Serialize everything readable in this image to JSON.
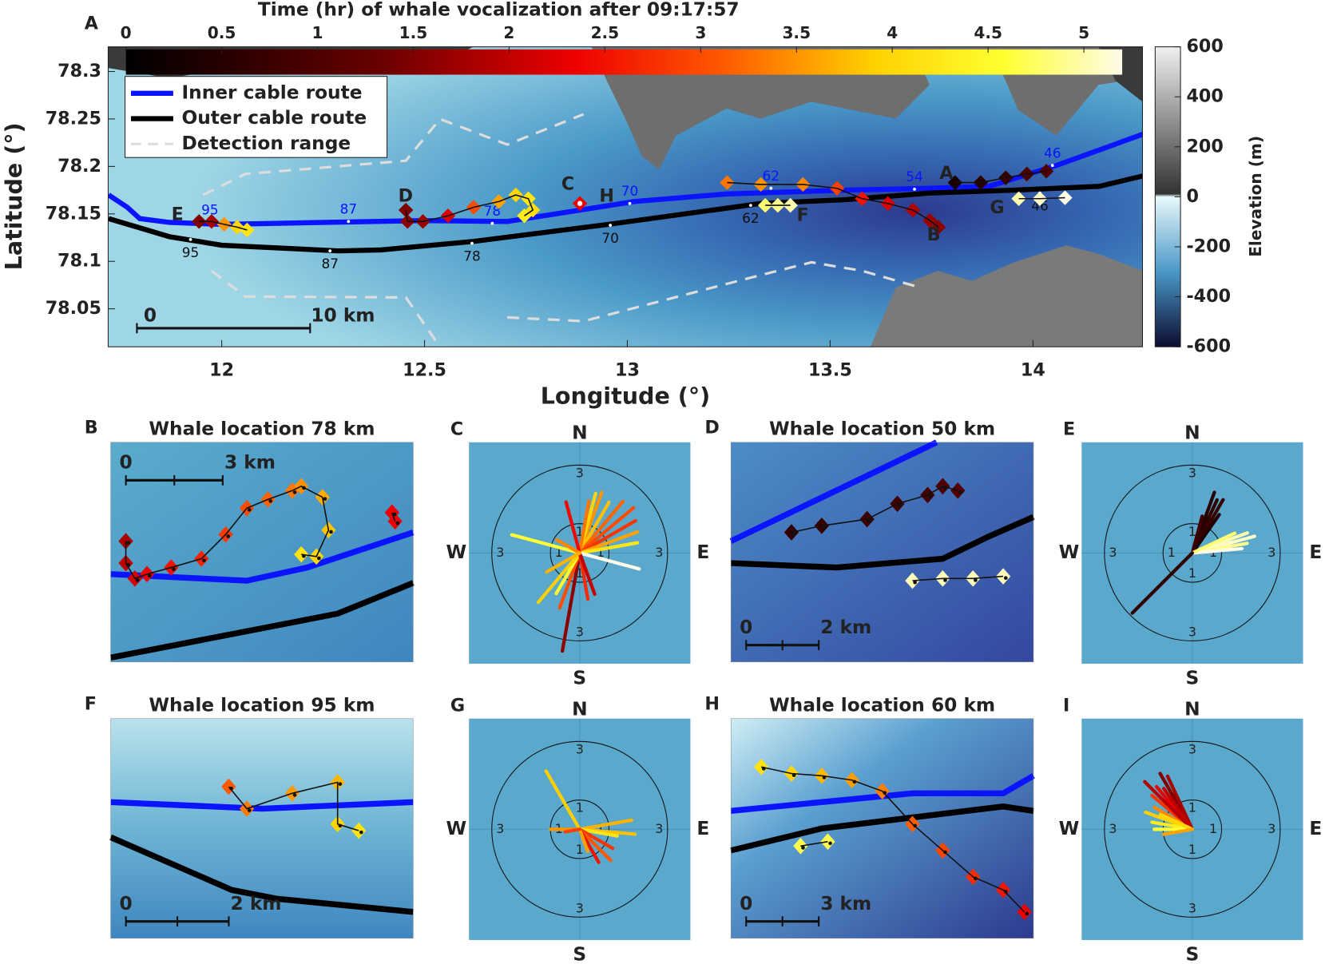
{
  "chart_data": [
    {
      "type": "map",
      "letter": "A",
      "xlabel": "Longitude (°)",
      "ylabel": "Latitude (°)",
      "xlim": [
        11.72,
        14.27
      ],
      "ylim": [
        78.01,
        78.326
      ],
      "xticks": [
        12,
        12.5,
        13,
        13.5,
        14
      ],
      "yticks": [
        78.05,
        78.1,
        78.15,
        78.2,
        78.25,
        78.3
      ],
      "legend": "upper left",
      "series": [
        {
          "name": "Inner cable route",
          "color": "#0a14ff",
          "style": "solid",
          "x": [
            11.721,
            11.767,
            11.798,
            11.871,
            12,
            12.496,
            12.704,
            13.017,
            13.246,
            13.538,
            13.746,
            13.892,
            14.058,
            14.271
          ],
          "y": [
            78.17,
            78.157,
            78.145,
            78.141,
            78.139,
            78.143,
            78.142,
            78.163,
            78.171,
            78.175,
            78.177,
            78.179,
            78.201,
            78.234
          ]
        },
        {
          "name": "Outer cable route",
          "color": "#000000",
          "style": "solid",
          "x": [
            11.721,
            11.871,
            12,
            12.288,
            12.392,
            12.621,
            12.954,
            13.329,
            13.538,
            13.746,
            13.954,
            14.163,
            14.271
          ],
          "y": [
            78.145,
            78.126,
            78.117,
            78.111,
            78.112,
            78.121,
            78.139,
            78.161,
            78.165,
            78.172,
            78.175,
            78.179,
            78.19
          ]
        },
        {
          "name": "Detection range",
          "color": "#dddddd",
          "style": "dashed",
          "x": [
            11.954,
            12.058,
            12.454,
            12.538,
            12.704,
            12.892,
            null,
            11.975,
            12.058,
            12.454,
            12.538,
            null,
            12.704,
            12.892,
            13.288,
            13.454,
            13.579,
            13.725
          ],
          "y": [
            78.17,
            78.192,
            78.206,
            78.25,
            78.223,
            78.255,
            null,
            78.09,
            78.063,
            78.062,
            78.01,
            null,
            78.041,
            78.037,
            78.081,
            78.099,
            78.09,
            78.072
          ]
        }
      ],
      "km_inner": {
        "labels": [
          95,
          87,
          78,
          70,
          62,
          54,
          46
        ],
        "lon": [
          11.971,
          12.3125,
          12.667,
          13.006,
          13.354,
          13.708,
          14.048
        ],
        "lat": [
          78.141,
          78.142,
          78.14,
          78.161,
          78.177,
          78.176,
          78.201
        ]
      },
      "km_outer": {
        "labels": [
          95,
          87,
          78,
          70,
          62,
          46
        ],
        "lon": [
          11.923,
          12.267,
          12.617,
          12.958,
          13.304,
          14.017
        ],
        "lat": [
          78.123,
          78.111,
          78.119,
          78.138,
          78.159,
          78.172
        ]
      },
      "tracks": [
        {
          "lon": [
            11.944,
            11.975,
            12.006,
            12.038,
            12.0625
          ],
          "lat": [
            78.142,
            78.142,
            78.139,
            78.136,
            78.133
          ],
          "time": [
            1.5,
            1.8,
            3.5,
            4.0,
            4.2
          ]
        },
        {
          "lon": [
            12.454,
            12.458,
            12.496,
            12.558,
            12.621,
            12.683,
            12.725,
            12.756,
            12.767,
            12.746
          ],
          "lat": [
            78.154,
            78.142,
            78.142,
            78.148,
            78.157,
            78.163,
            78.17,
            78.166,
            78.154,
            78.148
          ],
          "time": [
            1.5,
            1.6,
            1.7,
            2.2,
            3.0,
            3.6,
            4.0,
            4.2,
            4.1,
            4.3
          ]
        },
        {
          "lon": [
            12.883
          ],
          "lat": [
            78.161
          ],
          "time": [
            2.35
          ]
        },
        {
          "lon": [
            13.246,
            13.329,
            13.433,
            13.517,
            13.579,
            13.642,
            13.704,
            13.746,
            13.767
          ],
          "lat": [
            78.183,
            78.181,
            78.181,
            78.177,
            78.166,
            78.161,
            78.154,
            78.143,
            78.136
          ],
          "time": [
            3.3,
            3.5,
            3.4,
            2.9,
            2.5,
            2.2,
            1.9,
            1.7,
            1.6
          ]
        },
        {
          "lon": [
            13.808,
            13.871,
            13.933,
            13.985,
            14.033
          ],
          "lat": [
            78.183,
            78.183,
            78.188,
            78.192,
            78.195
          ],
          "time": [
            0.3,
            0.5,
            0.7,
            0.9,
            1.0
          ]
        },
        {
          "lon": [
            13.34,
            13.371,
            13.402
          ],
          "lat": [
            78.159,
            78.159,
            78.159
          ],
          "time": [
            4.8,
            4.9,
            5.0
          ]
        },
        {
          "lon": [
            13.965,
            14.017,
            14.079
          ],
          "lat": [
            78.166,
            78.166,
            78.167
          ],
          "time": [
            5.0,
            5.1,
            5.2
          ]
        }
      ],
      "map_labels": [
        "A",
        "B",
        "C",
        "D",
        "E",
        "F",
        "G",
        "H"
      ],
      "scale_bar_labels": [
        "0",
        "10 km"
      ],
      "time_colorbar": {
        "label": "Time (hr) of whale vocalization after 09:17:57",
        "lim": [
          0,
          5.2
        ],
        "ticks": [
          0,
          0.5,
          1,
          1.5,
          2,
          2.5,
          3,
          3.5,
          4,
          4.5,
          5
        ]
      },
      "elevation_colorbar": {
        "label": "Elevation (m)",
        "lim": [
          -600,
          600
        ],
        "ticks": [
          600,
          400,
          200,
          0,
          -200,
          -400,
          -600
        ]
      }
    },
    {
      "type": "polar",
      "letter": "C",
      "rlim": [
        0,
        3
      ],
      "rticks": [
        1,
        3
      ],
      "directions": [
        "N",
        "E",
        "S",
        "W"
      ],
      "bearing": [
        20,
        30,
        40,
        15,
        50,
        60,
        70,
        80,
        10,
        345,
        105,
        190,
        200,
        210,
        220,
        170,
        160,
        285,
        300,
        240
      ],
      "length": [
        2.2,
        2.0,
        2.3,
        2.1,
        2.4,
        2.2,
        2.1,
        2.0,
        1.8,
        1.8,
        2.1,
        3.4,
        2.0,
        1.6,
        2.2,
        1.6,
        1.5,
        2.4,
        0.9,
        1.3
      ],
      "time": [
        3.5,
        3.8,
        3.2,
        4.0,
        3.0,
        2.8,
        3.6,
        4.2,
        3.3,
        2.4,
        5.2,
        1.6,
        3.0,
        4.5,
        3.9,
        2.7,
        2.0,
        4.6,
        3.4,
        3.7
      ]
    },
    {
      "type": "polar",
      "letter": "E",
      "rlim": [
        0,
        3
      ],
      "rticks": [
        1,
        3
      ],
      "directions": [
        "N",
        "E",
        "S",
        "W"
      ],
      "bearing": [
        20,
        25,
        30,
        35,
        15,
        70,
        75,
        80,
        85,
        65,
        225
      ],
      "length": [
        2.2,
        2.0,
        2.1,
        1.6,
        1.3,
        2.0,
        2.2,
        1.9,
        1.7,
        1.6,
        2.9
      ],
      "time": [
        0.5,
        0.6,
        0.7,
        0.4,
        0.8,
        5.0,
        5.1,
        4.9,
        5.2,
        4.8,
        0.6
      ]
    },
    {
      "type": "polar",
      "letter": "G",
      "rlim": [
        0,
        3
      ],
      "rticks": [
        1,
        3
      ],
      "directions": [
        "N",
        "E",
        "S",
        "W"
      ],
      "bearing": [
        330,
        80,
        95,
        100,
        120,
        135,
        150,
        160,
        270,
        260
      ],
      "length": [
        2.3,
        1.8,
        1.9,
        1.3,
        1.3,
        1.5,
        1.3,
        0.8,
        1.0,
        0.5
      ],
      "time": [
        3.9,
        3.7,
        3.8,
        4.2,
        2.8,
        3.1,
        2.5,
        3.6,
        3.5,
        2.9
      ]
    },
    {
      "type": "polar",
      "letter": "I",
      "rlim": [
        0,
        3
      ],
      "rticks": [
        1,
        3
      ],
      "directions": [
        "N",
        "E",
        "S",
        "W"
      ],
      "bearing": [
        330,
        335,
        320,
        310,
        300,
        290,
        280,
        270,
        315,
        325,
        295,
        260
      ],
      "length": [
        2.2,
        2.0,
        1.9,
        1.8,
        1.5,
        1.7,
        1.4,
        1.3,
        2.3,
        1.7,
        1.2,
        1.0
      ],
      "time": [
        1.5,
        1.8,
        2.3,
        2.8,
        3.4,
        3.9,
        4.3,
        4.6,
        1.9,
        2.0,
        4.0,
        3.6
      ]
    }
  ],
  "insets": [
    {
      "letter": "B",
      "title": "Whale location 78 km",
      "scale_labels": [
        "0",
        "3 km"
      ]
    },
    {
      "letter": "D",
      "title": "Whale location 50 km",
      "scale_labels": [
        "0",
        "2 km"
      ]
    },
    {
      "letter": "F",
      "title": "Whale location 95 km",
      "scale_labels": [
        "0",
        "2 km"
      ]
    },
    {
      "letter": "H",
      "title": "Whale location 60 km",
      "scale_labels": [
        "0",
        "3 km"
      ]
    }
  ]
}
